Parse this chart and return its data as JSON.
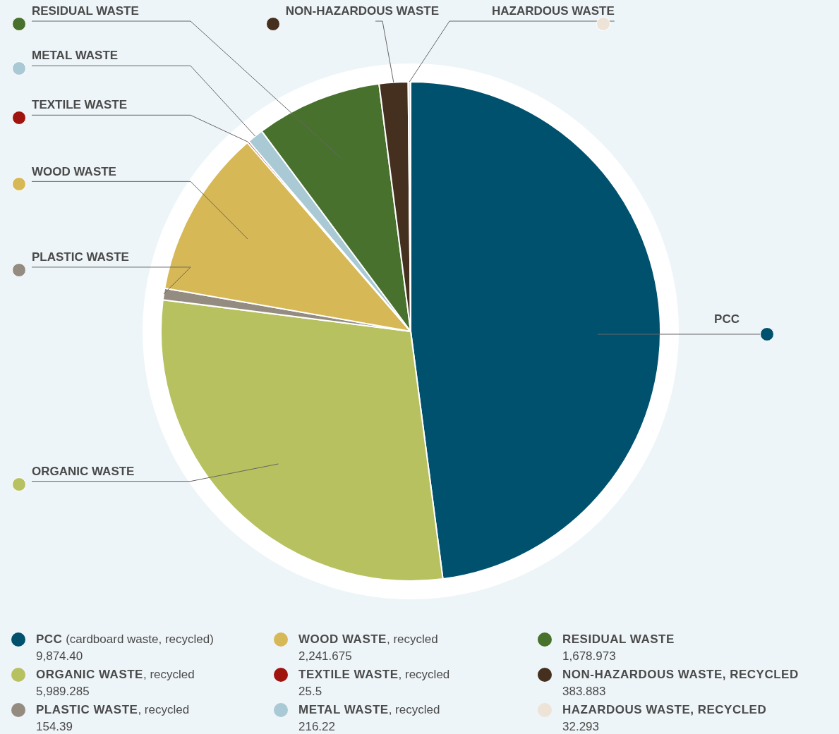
{
  "chart_data": {
    "type": "pie",
    "categories": [
      "PCC (cardboard waste, recycled)",
      "ORGANIC WASTE, recycled",
      "PLASTIC WASTE, recycled",
      "WOOD WASTE, recycled",
      "TEXTILE WASTE, recycled",
      "METAL WASTE, recycled",
      "RESIDUAL WASTE",
      "NON-HAZARDOUS WASTE, RECYCLED",
      "HAZARDOUS WASTE, RECYCLED"
    ],
    "values": [
      9874.4,
      5989.285,
      154.39,
      2241.675,
      25.5,
      216.22,
      1678.973,
      383.883,
      32.293
    ],
    "value_labels": [
      "9,874.40",
      "5,989.285",
      "154.39",
      "2,241.675",
      "25.5",
      "216.22",
      "1,678.973",
      "383.883",
      "32.293"
    ],
    "colors": [
      "#00516e",
      "#b7c15f",
      "#948c80",
      "#d7b856",
      "#a0140f",
      "#a9c9d4",
      "#48712d",
      "#45301f",
      "#ede3d6"
    ],
    "annotations": [
      "PCC",
      "ORGANIC WASTE",
      "PLASTIC WASTE",
      "WOOD WASTE",
      "TEXTILE WASTE",
      "METAL WASTE",
      "RESIDUAL WASTE",
      "NON-HAZARDOUS WASTE",
      "HAZARDOUS WASTE"
    ],
    "legend": "bottom"
  }
}
